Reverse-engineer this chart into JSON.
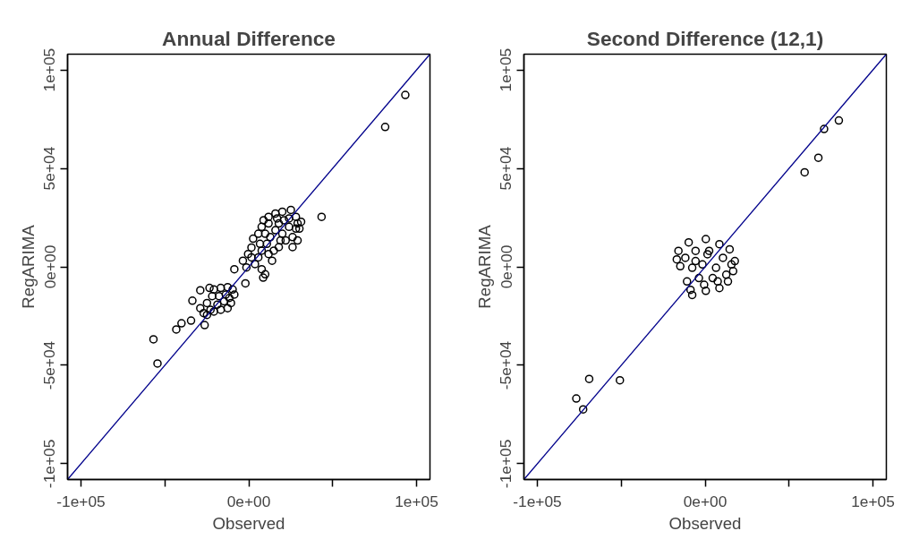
{
  "chart_data": [
    {
      "type": "scatter",
      "title": "Annual Difference",
      "xlabel": "Observed",
      "ylabel": "RegARIMA",
      "xlim": [
        -108000,
        108000
      ],
      "ylim": [
        -108000,
        108000
      ],
      "xticks": [
        {
          "value": -100000,
          "label": "-1e+05"
        },
        {
          "value": -50000,
          "label": null
        },
        {
          "value": 0,
          "label": "0e+00"
        },
        {
          "value": 50000,
          "label": null
        },
        {
          "value": 100000,
          "label": "1e+05"
        }
      ],
      "yticks": [
        {
          "value": -100000,
          "label": "-1e+05"
        },
        {
          "value": -50000,
          "label": "-5e+04"
        },
        {
          "value": 0,
          "label": "0e+00"
        },
        {
          "value": 50000,
          "label": "5e+04"
        },
        {
          "value": 100000,
          "label": "1e+05"
        }
      ],
      "grid": false,
      "series": [
        {
          "type": "scatter",
          "marker": "circle",
          "color": "#000000",
          "x": [
            93300,
            81300,
            43400,
            -56800,
            -54400,
            -43200,
            -40100,
            -34400,
            -33600,
            -26300,
            -28900,
            -23400,
            -8600,
            -2000,
            8600,
            -20800,
            -16700,
            -12600,
            -9600,
            -8600,
            -11600,
            -14700,
            -18700,
            -22800,
            -26900,
            -28900,
            -24900,
            -20800,
            -16700,
            -12600,
            -10600,
            -13700,
            -17700,
            -21800,
            -24900,
            -3500,
            -400,
            1600,
            2600,
            5700,
            7700,
            8800,
            11800,
            15900,
            20000,
            25100,
            28100,
            31200,
            30200,
            29100,
            26100,
            24000,
            21000,
            17900,
            15900,
            12800,
            10800,
            7700,
            5700,
            3700,
            7700,
            9800,
            13900,
            17900,
            22000,
            26100,
            20000,
            11800,
            6700,
            1600,
            -1400,
            14900,
            24000,
            16900,
            9800,
            18900,
            28100,
            29100,
            11800
          ],
          "values": [
            87300,
            71000,
            25400,
            -36800,
            -49100,
            -31800,
            -28700,
            -27300,
            -17200,
            -29600,
            -11900,
            -10700,
            -1200,
            -8400,
            -5500,
            -11500,
            -10700,
            -10300,
            -11500,
            -14100,
            -15800,
            -17500,
            -19200,
            -21800,
            -23500,
            -21000,
            -18400,
            -22700,
            -21800,
            -21000,
            -18400,
            -14100,
            -14900,
            -14900,
            -24400,
            3100,
            6500,
            9800,
            14300,
            16800,
            20300,
            23700,
            25400,
            27100,
            28000,
            28900,
            25400,
            22900,
            19400,
            13400,
            15100,
            20300,
            23700,
            22000,
            18600,
            15100,
            11700,
            8200,
            4800,
            1400,
            -1200,
            -3800,
            3100,
            10000,
            13400,
            10000,
            16800,
            22000,
            11700,
            4800,
            -300,
            8200,
            24600,
            24600,
            16800,
            13400,
            19400,
            22000,
            6500
          ]
        },
        {
          "type": "line",
          "color": "#00008b",
          "x": [
            -108000,
            108000
          ],
          "values": [
            -108000,
            108000
          ]
        }
      ]
    },
    {
      "type": "scatter",
      "title": "Second Difference (12,1)",
      "xlabel": "Observed",
      "ylabel": "RegARIMA",
      "xlim": [
        -108000,
        108000
      ],
      "ylim": [
        -108000,
        108000
      ],
      "xticks": [
        {
          "value": -100000,
          "label": "-1e+05"
        },
        {
          "value": -50000,
          "label": null
        },
        {
          "value": 0,
          "label": "0e+00"
        },
        {
          "value": 50000,
          "label": null
        },
        {
          "value": 100000,
          "label": "1e+05"
        }
      ],
      "yticks": [
        {
          "value": -100000,
          "label": "-1e+05"
        },
        {
          "value": -50000,
          "label": "-5e+04"
        },
        {
          "value": 0,
          "label": "0e+00"
        },
        {
          "value": 50000,
          "label": "5e+04"
        },
        {
          "value": 100000,
          "label": "1e+05"
        }
      ],
      "grid": false,
      "series": [
        {
          "type": "scatter",
          "marker": "circle",
          "color": "#000000",
          "x": [
            79700,
            70900,
            67500,
            59300,
            -69100,
            -50800,
            -76800,
            -72700,
            -9800,
            400,
            8500,
            14600,
            17700,
            16700,
            13600,
            8500,
            400,
            -7700,
            -10800,
            -16900,
            -15900,
            -5700,
            2400,
            10600,
            6500,
            -1600,
            -7700,
            -11800,
            -3700,
            4500,
            12600,
            1400,
            -5700,
            -8700,
            7500,
            15700,
            -14800,
            -600
          ],
          "values": [
            74300,
            70000,
            55400,
            48000,
            -56900,
            -57600,
            -66900,
            -72400,
            12400,
            14100,
            11500,
            8900,
            2900,
            -2200,
            -7400,
            -10800,
            -12200,
            -14300,
            -7400,
            3800,
            8100,
            8100,
            8100,
            4600,
            -500,
            1200,
            -500,
            4600,
            -5700,
            -5700,
            -4000,
            6400,
            2900,
            -11700,
            -7400,
            1200,
            300,
            -9100
          ]
        },
        {
          "type": "line",
          "color": "#00008b",
          "x": [
            -108000,
            108000
          ],
          "values": [
            -108000,
            108000
          ]
        }
      ]
    }
  ]
}
